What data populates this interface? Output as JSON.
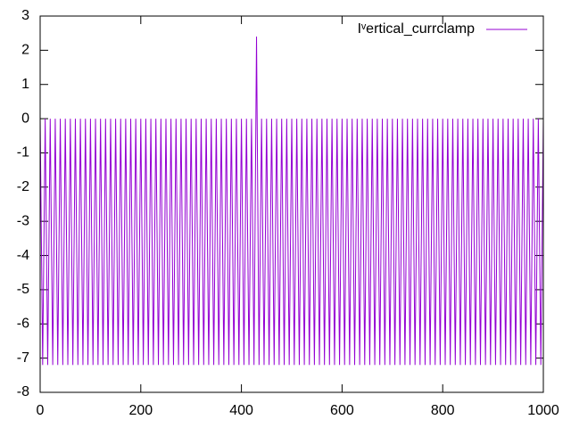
{
  "chart_data": {
    "type": "line",
    "x": [
      0,
      5,
      10,
      15,
      20,
      25,
      30,
      35,
      40,
      45,
      50,
      55,
      60,
      65,
      70,
      75,
      80,
      85,
      90,
      95,
      100,
      105,
      110,
      115,
      120,
      125,
      130,
      135,
      140,
      145,
      150,
      155,
      160,
      165,
      170,
      175,
      180,
      185,
      190,
      195,
      200,
      205,
      210,
      215,
      220,
      225,
      230,
      235,
      240,
      245,
      250,
      255,
      260,
      265,
      270,
      275,
      280,
      285,
      290,
      295,
      300,
      305,
      310,
      315,
      320,
      325,
      330,
      335,
      340,
      345,
      350,
      355,
      360,
      365,
      370,
      375,
      380,
      385,
      390,
      395,
      400,
      405,
      410,
      415,
      420,
      425,
      430,
      435,
      440,
      445,
      450,
      455,
      460,
      465,
      470,
      475,
      480,
      485,
      490,
      495,
      500,
      505,
      510,
      515,
      520,
      525,
      530,
      535,
      540,
      545,
      550,
      555,
      560,
      565,
      570,
      575,
      580,
      585,
      590,
      595,
      600,
      605,
      610,
      615,
      620,
      625,
      630,
      635,
      640,
      645,
      650,
      655,
      660,
      665,
      670,
      675,
      680,
      685,
      690,
      695,
      700,
      705,
      710,
      715,
      720,
      725,
      730,
      735,
      740,
      745,
      750,
      755,
      760,
      765,
      770,
      775,
      780,
      785,
      790,
      795,
      800,
      805,
      810,
      815,
      820,
      825,
      830,
      835,
      840,
      845,
      850,
      855,
      860,
      865,
      870,
      875,
      880,
      885,
      890,
      895,
      900,
      905,
      910,
      915,
      920,
      925,
      930,
      935,
      940,
      945,
      950,
      955,
      960,
      965,
      970,
      975,
      980,
      985,
      990,
      995,
      1000
    ],
    "series": [
      {
        "name": "Iᵛertical_currclamp",
        "color": "#9400d3",
        "values": [
          0,
          -7.2,
          0,
          -7.2,
          0,
          -7.2,
          0,
          -7.2,
          0,
          -7.2,
          0,
          -7.2,
          0,
          -7.2,
          0,
          -7.2,
          0,
          -7.2,
          0,
          -7.2,
          0,
          -7.2,
          0,
          -7.2,
          0,
          -7.2,
          0,
          -7.2,
          0,
          -7.2,
          0,
          -7.2,
          0,
          -7.2,
          0,
          -7.2,
          0,
          -7.2,
          0,
          -7.2,
          0,
          -7.2,
          0,
          -7.2,
          0,
          -7.2,
          0,
          -7.2,
          0,
          -7.2,
          0,
          -7.2,
          0,
          -7.2,
          0,
          -7.2,
          0,
          -7.2,
          0,
          -7.2,
          0,
          -7.2,
          0,
          -7.2,
          0,
          -7.2,
          0,
          -7.2,
          0,
          -7.2,
          0,
          -7.2,
          0,
          -7.2,
          0,
          -7.2,
          0,
          -7.2,
          0,
          -7.2,
          0,
          -7.2,
          0,
          -7.2,
          0,
          -7.2,
          2.4,
          -7.2,
          0,
          -7.2,
          0,
          -7.2,
          0,
          -7.2,
          0,
          -7.2,
          0,
          -7.2,
          0,
          -7.2,
          0,
          -7.2,
          0,
          -7.2,
          0,
          -7.2,
          0,
          -7.2,
          0,
          -7.2,
          0,
          -7.2,
          0,
          -7.2,
          0,
          -7.2,
          0,
          -7.2,
          0,
          -7.2,
          0,
          -7.2,
          0,
          -7.2,
          0,
          -7.2,
          0,
          -7.2,
          0,
          -7.2,
          0,
          -7.2,
          0,
          -7.2,
          0,
          -7.2,
          0,
          -7.2,
          0,
          -7.2,
          0,
          -7.2,
          0,
          -7.2,
          0,
          -7.2,
          0,
          -7.2,
          0,
          -7.2,
          0,
          -7.2,
          0,
          -7.2,
          0,
          -7.2,
          0,
          -7.2,
          0,
          -7.2,
          0,
          -7.2,
          0,
          -7.2,
          0,
          -7.2,
          0,
          -7.2,
          0,
          -7.2,
          0,
          -7.2,
          0,
          -7.2,
          0,
          -7.2,
          0,
          -7.2,
          0,
          -7.2,
          0,
          -7.2,
          0,
          -7.2,
          0,
          -7.2,
          0,
          -7.2,
          0,
          -7.2,
          0,
          -7.2,
          0,
          -7.2,
          0,
          -7.2,
          0,
          -7.2,
          0,
          -7.2,
          0
        ]
      }
    ],
    "xlim": [
      0,
      1000
    ],
    "xticks": [
      0,
      200,
      400,
      600,
      800,
      1000
    ],
    "ylim": [
      -8,
      3
    ],
    "yticks": [
      -8,
      -7,
      -6,
      -5,
      -4,
      -3,
      -2,
      -1,
      0,
      1,
      2,
      3
    ],
    "legend": "top-right"
  }
}
